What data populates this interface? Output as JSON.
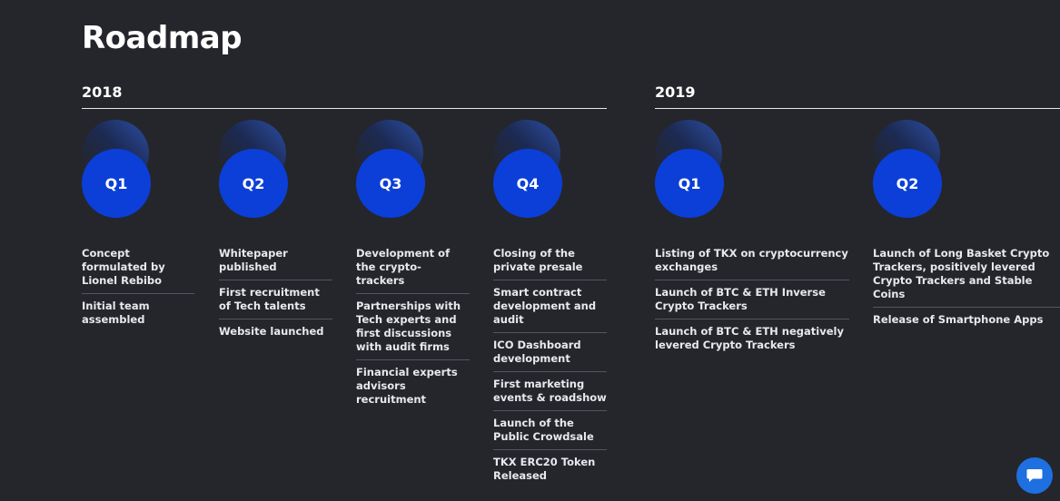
{
  "page_title": "Roadmap",
  "years": [
    "2018",
    "2019"
  ],
  "columns": [
    {
      "quarter": "Q1",
      "items": [
        "Concept formulated by Lionel Rebibo",
        "Initial team assembled"
      ]
    },
    {
      "quarter": "Q2",
      "items": [
        "Whitepaper published",
        "First recruitment of Tech talents",
        "Website launched"
      ]
    },
    {
      "quarter": "Q3",
      "items": [
        "Development of the crypto-trackers",
        "Partnerships with Tech experts and first discussions with audit firms",
        "Financial experts advisors recruitment"
      ]
    },
    {
      "quarter": "Q4",
      "items": [
        "Closing of the private presale",
        "Smart contract development and audit",
        "ICO Dashboard development",
        "First marketing events & roadshow",
        "Launch of the Public Crowdsale",
        "TKX ERC20 Token Released"
      ]
    },
    {
      "quarter": "Q1",
      "items": [
        "Listing of TKX on cryptocurrency exchanges",
        "Launch of BTC & ETH Inverse Crypto Trackers",
        "Launch of BTC & ETH negatively levered Crypto Trackers"
      ]
    },
    {
      "quarter": "Q2",
      "items": [
        "Launch of Long Basket Crypto Trackers, positively levered Crypto Trackers and Stable Coins",
        "Release of Smartphone Apps"
      ]
    }
  ],
  "chat_icon": "chat-bubble-icon",
  "colors": {
    "background": "#25262c",
    "accent": "#0b3fd8",
    "chat": "#1e6fe0"
  }
}
